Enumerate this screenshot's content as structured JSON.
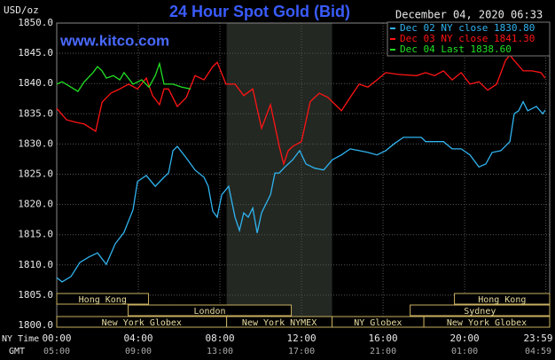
{
  "chart_data": {
    "type": "line",
    "title": "24 Hour Spot Gold (Bid)",
    "watermark": "www.kitco.com",
    "ylabel": "USD/oz",
    "timestamp": "December 04, 2020 06:33",
    "x_row_labels": [
      "NY Time",
      "GMT"
    ],
    "xlim": [
      0,
      24.17
    ],
    "xticks": [
      {
        "value": 0,
        "label": "00:00"
      },
      {
        "value": 4,
        "label": "04:00"
      },
      {
        "value": 8,
        "label": "08:00"
      },
      {
        "value": 12,
        "label": "12:00"
      },
      {
        "value": 16,
        "label": "16:00"
      },
      {
        "value": 20,
        "label": "20:00"
      },
      {
        "value": 23.98,
        "label": "23:59"
      }
    ],
    "xticks_gmt": [
      "05:00",
      "09:00",
      "13:00",
      "17:00",
      "21:00",
      "01:00",
      "04:59"
    ],
    "ylim": [
      1800,
      1850
    ],
    "yticks": [
      {
        "value": 1800,
        "label": "1800.0"
      },
      {
        "value": 1805,
        "label": "1805.0"
      },
      {
        "value": 1810,
        "label": "1810.0"
      },
      {
        "value": 1815,
        "label": "1815.0"
      },
      {
        "value": 1820,
        "label": "1820.0"
      },
      {
        "value": 1825,
        "label": "1825.0"
      },
      {
        "value": 1830,
        "label": "1830.0"
      },
      {
        "value": 1835,
        "label": "1835.0"
      },
      {
        "value": 1840,
        "label": "1840.0"
      },
      {
        "value": 1845,
        "label": "1845.0"
      },
      {
        "value": 1850,
        "label": "1850.0"
      }
    ],
    "grid": true,
    "legend": "top-right",
    "session_rows": [
      [
        {
          "label": "Hong Kong",
          "start": 0,
          "end": 4.5
        },
        {
          "label": "Hong Kong",
          "start": 19.5,
          "end": 24.17
        }
      ],
      [
        {
          "label": "London",
          "start": 3.5,
          "end": 11.5
        },
        {
          "label": "Sydney",
          "start": 17.33,
          "end": 24.17
        }
      ],
      [
        {
          "label": "New York Globex",
          "start": 0,
          "end": 8.33
        },
        {
          "label": "New York NYMEX",
          "start": 8.33,
          "end": 13.5
        },
        {
          "label": "NY Globex",
          "start": 13.5,
          "end": 18
        },
        {
          "label": "New York Globex",
          "start": 18,
          "end": 24.17
        }
      ]
    ],
    "series": [
      {
        "name": "Dec 02 NY close 1830.80",
        "color": "#30b4f0",
        "x": [
          0,
          0.26,
          0.7,
          1.13,
          1.57,
          2.0,
          2.43,
          2.87,
          3.3,
          3.74,
          3.96,
          4.39,
          4.83,
          5.26,
          5.48,
          5.7,
          5.91,
          6.35,
          6.78,
          7.22,
          7.43,
          7.65,
          7.87,
          8.09,
          8.43,
          8.74,
          8.96,
          9.17,
          9.39,
          9.61,
          9.83,
          10.04,
          10.26,
          10.48,
          10.7,
          10.91,
          11.13,
          11.57,
          11.91,
          12.22,
          12.65,
          13.09,
          13.52,
          13.96,
          14.39,
          14.83,
          15.26,
          15.7,
          16.13,
          16.57,
          17.0,
          17.87,
          18.09,
          18.52,
          18.96,
          19.39,
          19.83,
          20.26,
          20.7,
          21.04,
          21.35,
          21.78,
          22.22,
          22.43,
          22.65,
          22.87,
          23.09,
          23.52,
          23.83,
          23.95
        ],
        "values": [
          1807.9,
          1807.2,
          1808.1,
          1810.4,
          1811.3,
          1812.0,
          1810.1,
          1813.5,
          1815.4,
          1819.1,
          1823.8,
          1824.8,
          1823.0,
          1824.5,
          1825.2,
          1828.9,
          1829.6,
          1827.7,
          1825.7,
          1824.5,
          1823.0,
          1818.9,
          1817.9,
          1821.6,
          1823.0,
          1817.9,
          1815.7,
          1818.6,
          1817.9,
          1819.4,
          1815.3,
          1818.6,
          1820.1,
          1821.6,
          1825.2,
          1825.2,
          1826.0,
          1827.4,
          1828.9,
          1826.7,
          1826.0,
          1825.7,
          1827.4,
          1828.2,
          1829.2,
          1828.9,
          1828.6,
          1828.2,
          1828.9,
          1830.1,
          1831.1,
          1831.1,
          1830.4,
          1830.4,
          1830.4,
          1829.2,
          1829.2,
          1828.2,
          1826.2,
          1826.7,
          1828.6,
          1828.9,
          1830.4,
          1835.0,
          1835.5,
          1837.0,
          1835.5,
          1836.2,
          1835.0,
          1835.6
        ]
      },
      {
        "name": "Dec 03 NY close 1841.30",
        "color": "#ff1414",
        "x": [
          0,
          0.48,
          0.91,
          1.35,
          1.91,
          2.22,
          2.65,
          3.09,
          3.52,
          3.96,
          4.39,
          4.7,
          5.04,
          5.26,
          5.48,
          5.91,
          6.35,
          6.78,
          7.22,
          7.65,
          7.87,
          8.3,
          8.74,
          9.17,
          9.61,
          10.04,
          10.48,
          10.91,
          11.13,
          11.35,
          11.57,
          12.0,
          12.43,
          12.87,
          13.3,
          13.96,
          14.39,
          14.83,
          15.26,
          15.7,
          16.13,
          16.78,
          17.65,
          18.09,
          18.52,
          18.96,
          19.39,
          19.83,
          20.26,
          20.7,
          21.13,
          21.57,
          22.0,
          22.22,
          22.43,
          22.87,
          23.3,
          23.74,
          23.95
        ],
        "values": [
          1835.9,
          1834.0,
          1833.6,
          1833.3,
          1832.1,
          1836.9,
          1838.4,
          1839.1,
          1839.9,
          1839.1,
          1840.9,
          1838.0,
          1836.5,
          1839.1,
          1839.1,
          1836.2,
          1837.7,
          1841.3,
          1840.6,
          1842.8,
          1843.5,
          1839.9,
          1839.9,
          1838.0,
          1839.1,
          1832.6,
          1836.5,
          1829.6,
          1826.7,
          1828.9,
          1829.6,
          1830.4,
          1837.0,
          1838.4,
          1837.7,
          1835.5,
          1837.7,
          1839.9,
          1839.4,
          1840.6,
          1841.8,
          1841.5,
          1841.3,
          1841.8,
          1841.3,
          1842.1,
          1840.6,
          1841.8,
          1839.9,
          1840.3,
          1838.9,
          1839.9,
          1843.8,
          1844.7,
          1843.8,
          1842.1,
          1842.1,
          1841.8,
          1840.9
        ]
      },
      {
        "name": "Dec 04 Last 1838.60",
        "color": "#22e022",
        "x": [
          0,
          0.26,
          0.7,
          1.04,
          1.35,
          1.78,
          2.0,
          2.22,
          2.43,
          2.78,
          3.09,
          3.3,
          3.74,
          4.17,
          4.52,
          4.83,
          5.04,
          5.26,
          5.7,
          6.13,
          6.57
        ],
        "values": [
          1839.9,
          1840.3,
          1839.4,
          1838.7,
          1840.3,
          1841.8,
          1842.8,
          1842.1,
          1840.9,
          1841.3,
          1840.6,
          1841.8,
          1839.9,
          1840.6,
          1839.4,
          1841.3,
          1843.3,
          1839.9,
          1839.9,
          1839.4,
          1839.1
        ]
      }
    ]
  }
}
